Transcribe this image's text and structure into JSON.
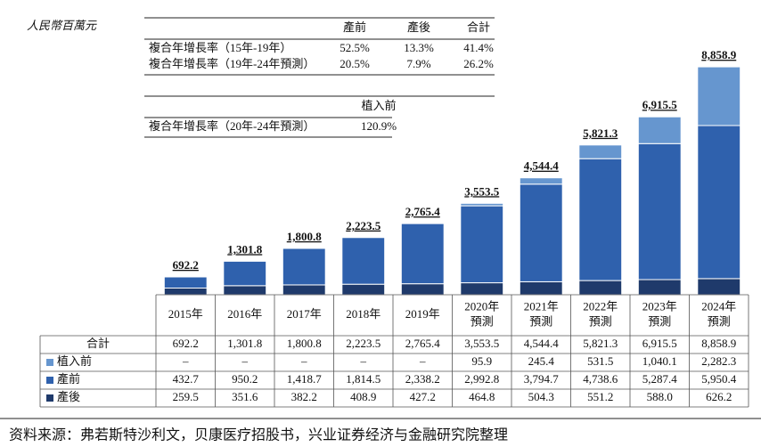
{
  "unit_label": "人民幣百萬元",
  "cagr_tables": [
    {
      "header": [
        "產前",
        "產後",
        "合計"
      ],
      "rows": [
        {
          "label": "複合年增長率（15年-19年）",
          "values": [
            "52.5%",
            "13.3%",
            "41.4%"
          ]
        },
        {
          "label": "複合年增長率（19年-24年預測）",
          "values": [
            "20.5%",
            "7.9%",
            "26.2%"
          ]
        }
      ]
    },
    {
      "header": [
        "植入前"
      ],
      "rows": [
        {
          "label": "複合年增長率（20年-24年預測）",
          "values": [
            "120.9%"
          ]
        }
      ]
    }
  ],
  "chart_data": {
    "type": "stacked_bar",
    "categories": [
      "2015年",
      "2016年",
      "2017年",
      "2018年",
      "2019年",
      "2020年\n預測",
      "2021年\n預測",
      "2022年\n預測",
      "2023年\n預測",
      "2024年\n預測"
    ],
    "ylim": [
      0,
      9000
    ],
    "series": [
      {
        "name": "產後",
        "color": "#1f3a6b",
        "values": [
          259.5,
          351.6,
          382.2,
          408.9,
          427.2,
          464.8,
          504.3,
          551.2,
          588.0,
          626.2
        ],
        "value_labels": [
          "259.5",
          "351.6",
          "382.2",
          "408.9",
          "427.2",
          "464.8",
          "504.3",
          "551.2",
          "588.0",
          "626.2"
        ]
      },
      {
        "name": "產前",
        "color": "#2f61ad",
        "values": [
          432.7,
          950.2,
          1418.7,
          1814.5,
          2338.2,
          2992.8,
          3794.7,
          4738.6,
          5287.4,
          5950.4
        ],
        "value_labels": [
          "432.7",
          "950.2",
          "1,418.7",
          "1,814.5",
          "2,338.2",
          "2,992.8",
          "3,794.7",
          "4,738.6",
          "5,287.4",
          "5,950.4"
        ]
      },
      {
        "name": "植入前",
        "color": "#6696cf",
        "values": [
          null,
          null,
          null,
          null,
          null,
          95.9,
          245.4,
          531.5,
          1040.1,
          2282.3
        ],
        "value_labels": [
          "–",
          "–",
          "–",
          "–",
          "–",
          "95.9",
          "245.4",
          "531.5",
          "1,040.1",
          "2,282.3"
        ]
      }
    ],
    "total": {
      "name": "合計",
      "values": [
        692.2,
        1301.8,
        1800.8,
        2223.5,
        2765.4,
        3553.5,
        4544.4,
        5821.3,
        6915.5,
        8858.9
      ],
      "value_labels": [
        "692.2",
        "1,301.8",
        "1,800.8",
        "2,223.5",
        "2,765.4",
        "3,553.5",
        "4,544.4",
        "5,821.3",
        "6,915.5",
        "8,858.9"
      ]
    }
  },
  "source": "资料来源：弗若斯特沙利文，贝康医疗招股书，兴业证券经济与金融研究院整理"
}
